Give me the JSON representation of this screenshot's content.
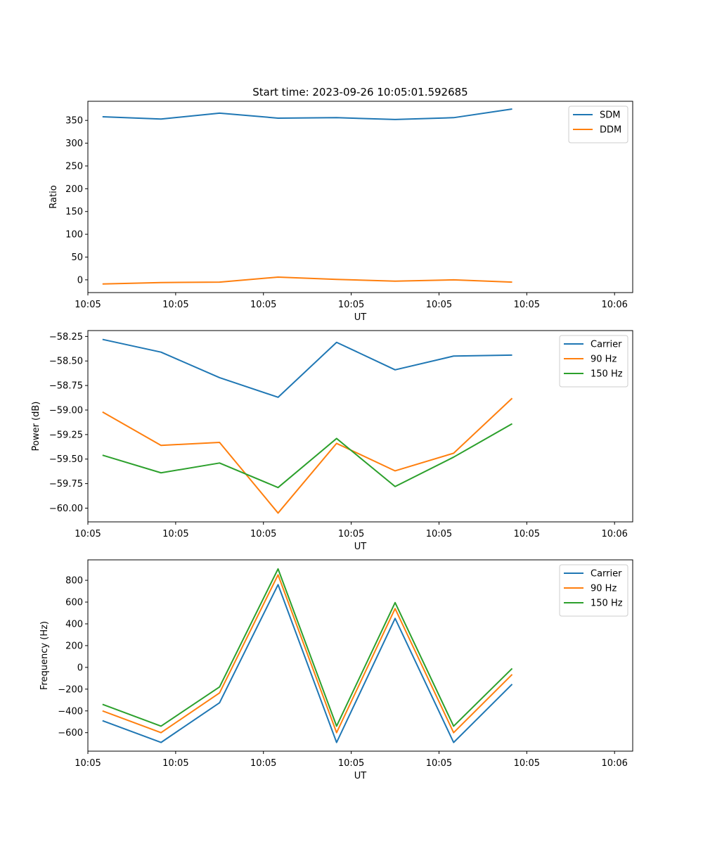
{
  "figure_title": "Start time: 2023-09-26 10:05:01.592685",
  "colors": {
    "blue": "#1f77b4",
    "orange": "#ff7f0e",
    "green": "#2ca02c"
  },
  "chart_data": [
    {
      "type": "line",
      "title": "Start time: 2023-09-26 10:05:01.592685",
      "xlabel": "UT",
      "ylabel": "Ratio",
      "x": [
        1,
        2,
        3,
        4,
        5,
        6,
        7,
        8
      ],
      "xlim": [
        0.75,
        10.06
      ],
      "xticks": [
        0.75,
        2.25,
        3.75,
        5.25,
        6.75,
        8.25,
        9.75
      ],
      "xtick_labels": [
        "10:05",
        "10:05",
        "10:05",
        "10:05",
        "10:05",
        "10:05",
        "10:06"
      ],
      "ylim": [
        -28,
        392
      ],
      "yticks": [
        0,
        50,
        100,
        150,
        200,
        250,
        300,
        350
      ],
      "ytick_labels": [
        "0",
        "50",
        "100",
        "150",
        "200",
        "250",
        "300",
        "350"
      ],
      "legend_position": "top-right",
      "series": [
        {
          "name": "SDM",
          "color": "#1f77b4",
          "values": [
            358,
            353,
            366,
            355,
            356,
            352,
            356,
            375
          ]
        },
        {
          "name": "DDM",
          "color": "#ff7f0e",
          "values": [
            -9,
            -6,
            -5,
            6,
            1,
            -3,
            0,
            -5
          ]
        }
      ]
    },
    {
      "type": "line",
      "title": "",
      "xlabel": "UT",
      "ylabel": "Power (dB)",
      "x": [
        1,
        2,
        3,
        4,
        5,
        6,
        7,
        8
      ],
      "xlim": [
        0.75,
        10.06
      ],
      "xticks": [
        0.75,
        2.25,
        3.75,
        5.25,
        6.75,
        8.25,
        9.75
      ],
      "xtick_labels": [
        "10:05",
        "10:05",
        "10:05",
        "10:05",
        "10:05",
        "10:05",
        "10:06"
      ],
      "ylim": [
        -60.14,
        -58.19
      ],
      "yticks": [
        -60.0,
        -59.75,
        -59.5,
        -59.25,
        -59.0,
        -58.75,
        -58.5,
        -58.25
      ],
      "ytick_labels": [
        "−60.00",
        "−59.75",
        "−59.50",
        "−59.25",
        "−59.00",
        "−58.75",
        "−58.50",
        "−58.25"
      ],
      "legend_position": "top-right",
      "series": [
        {
          "name": "Carrier",
          "color": "#1f77b4",
          "values": [
            -58.28,
            -58.41,
            -58.67,
            -58.87,
            -58.31,
            -58.59,
            -58.45,
            -58.44
          ]
        },
        {
          "name": "90 Hz",
          "color": "#ff7f0e",
          "values": [
            -59.02,
            -59.36,
            -59.33,
            -60.05,
            -59.34,
            -59.62,
            -59.44,
            -58.88
          ]
        },
        {
          "name": "150 Hz",
          "color": "#2ca02c",
          "values": [
            -59.46,
            -59.64,
            -59.54,
            -59.79,
            -59.29,
            -59.78,
            -59.48,
            -59.14
          ]
        }
      ]
    },
    {
      "type": "line",
      "title": "",
      "xlabel": "UT",
      "ylabel": "Frequency (Hz)",
      "x": [
        1,
        2,
        3,
        4,
        5,
        6,
        7,
        8
      ],
      "xlim": [
        0.75,
        10.06
      ],
      "xticks": [
        0.75,
        2.25,
        3.75,
        5.25,
        6.75,
        8.25,
        9.75
      ],
      "xtick_labels": [
        "10:05",
        "10:05",
        "10:05",
        "10:05",
        "10:05",
        "10:05",
        "10:06"
      ],
      "ylim": [
        -770,
        988
      ],
      "yticks": [
        -600,
        -400,
        -200,
        0,
        200,
        400,
        600,
        800
      ],
      "ytick_labels": [
        "−600",
        "−400",
        "−200",
        "0",
        "200",
        "400",
        "600",
        "800"
      ],
      "legend_position": "top-right",
      "series": [
        {
          "name": "Carrier",
          "color": "#1f77b4",
          "values": [
            -490,
            -690,
            -325,
            760,
            -690,
            450,
            -690,
            -155
          ]
        },
        {
          "name": "90 Hz",
          "color": "#ff7f0e",
          "values": [
            -400,
            -600,
            -235,
            850,
            -600,
            540,
            -600,
            -65
          ]
        },
        {
          "name": "150 Hz",
          "color": "#2ca02c",
          "values": [
            -340,
            -540,
            -180,
            905,
            -540,
            595,
            -540,
            -10
          ]
        }
      ]
    }
  ]
}
